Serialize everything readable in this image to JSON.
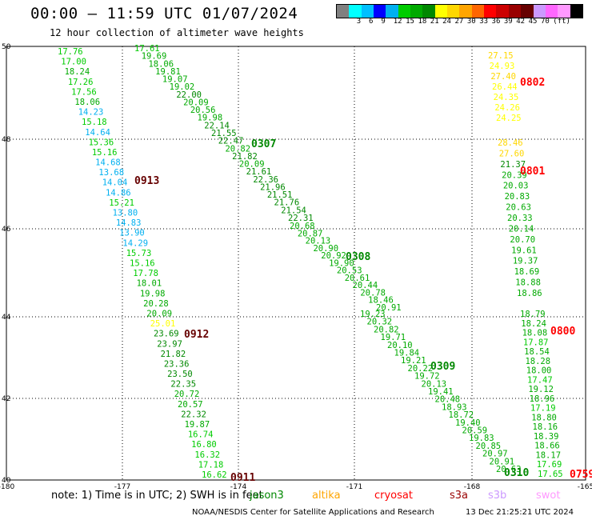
{
  "title": "00:00 – 11:59 UTC 01/07/2024",
  "subtitle": "12 hour collection of altimeter wave heights",
  "colorbar": {
    "colors": [
      "#808080",
      "#00ffff",
      "#00bfff",
      "#0000ff",
      "#00b0f0",
      "#00cc00",
      "#00aa00",
      "#008800",
      "#ffff00",
      "#ffd700",
      "#ffa500",
      "#ff6600",
      "#ff0000",
      "#cc0000",
      "#990000",
      "#660000",
      "#cc99ff",
      "#ff66ff",
      "#ff99ff",
      "#000000"
    ],
    "labels": [
      "3",
      "6",
      "9",
      "12",
      "15",
      "18",
      "21",
      "24",
      "27",
      "30",
      "33",
      "36",
      "39",
      "42",
      "45",
      "70",
      "(ft)"
    ]
  },
  "axes": {
    "x_ticks": [
      "-180",
      "-177",
      "-174",
      "-171",
      "-168",
      "-165"
    ],
    "y_ticks": [
      "50",
      "48",
      "46",
      "44",
      "42",
      "40"
    ]
  },
  "tracks": [
    {
      "id": "0913",
      "color": "#660000",
      "values": [
        "17.76",
        "17.00",
        "18.24",
        "17.26",
        "17.56",
        "18.06",
        "14.23",
        "15.18",
        "14.64",
        "15.36",
        "15.16",
        "14.68",
        "13.68",
        "14.04",
        "14.86",
        "15.21",
        "13.80",
        "14.83",
        "13.90",
        "14.29",
        "15.73",
        "15.16",
        "17.78",
        "18.01",
        "19.98",
        "20.28",
        "20.09",
        "25.01",
        "23.69",
        "23.97",
        "21.82",
        "23.36",
        "23.50",
        "22.35",
        "20.72",
        "20.57",
        "22.32",
        "19.87",
        "16.74",
        "16.80",
        "16.32",
        "17.18",
        "16.62"
      ]
    },
    {
      "id": "0307",
      "color": "#008800",
      "values": [
        "17.61",
        "19.69",
        "18.06",
        "19.81",
        "19.07",
        "19.02",
        "22.00",
        "20.09",
        "20.56",
        "19.98",
        "22.14",
        "21.55",
        "22.47",
        "20.82",
        "21.82",
        "20.09",
        "21.61",
        "22.36",
        "21.96",
        "21.51",
        "21.76",
        "21.54",
        "22.31"
      ]
    },
    {
      "id": "0308",
      "color": "#008800",
      "values": [
        "20.68",
        "20.87",
        "20.13",
        "20.90",
        "20.92",
        "19.90",
        "20.53",
        "20.61",
        "20.44",
        "20.78",
        "18.46",
        "20.91"
      ]
    },
    {
      "id": "0309",
      "color": "#008800",
      "values": [
        "19.23",
        "20.32",
        "20.82",
        "19.71",
        "20.10",
        "19.84",
        "19.21",
        "20.22",
        "19.72",
        "20.13",
        "19.41",
        "20.48",
        "18.93",
        "18.72",
        "19.40",
        "20.59",
        "19.83",
        "20.85",
        "20.97",
        "20.91",
        "20.63"
      ]
    },
    {
      "id": "0802",
      "color": "#ff0000",
      "values": [
        "27.15",
        "24.93",
        "27.40",
        "26.44",
        "24.35",
        "24.26",
        "24.25"
      ]
    },
    {
      "id": "0801",
      "color": "#ff0000",
      "values": [
        "28.46",
        "27.60",
        "21.37",
        "20.39",
        "20.03",
        "20.83",
        "20.63",
        "20.33",
        "20.14",
        "20.70",
        "19.61",
        "19.37",
        "18.69",
        "18.88",
        "18.86"
      ]
    },
    {
      "id": "0800",
      "color": "#ff0000",
      "values": [
        "18.79",
        "18.24",
        "18.08",
        "17.87",
        "18.54",
        "18.28",
        "18.00",
        "17.47",
        "19.12",
        "18.96",
        "17.19",
        "18.80",
        "18.16",
        "18.39",
        "18.66",
        "18.17",
        "17.69",
        "17.65"
      ]
    }
  ],
  "other_ids": [
    "0912",
    "0911",
    "0310",
    "0759"
  ],
  "note": {
    "text": "note:  1) Time is in UTC; 2) SWH is in feet",
    "legend": [
      {
        "name": "jason3",
        "color": "#008800"
      },
      {
        "name": "altika",
        "color": "#ffa500"
      },
      {
        "name": "cryosat",
        "color": "#ff0000"
      },
      {
        "name": "s3a",
        "color": "#990000"
      },
      {
        "name": "s3b",
        "color": "#cc99ff"
      },
      {
        "name": "swot",
        "color": "#ff99ff"
      }
    ]
  },
  "credit": "NOAA/NESDIS Center for Satellite Applications and Research",
  "timestamp": "13 Dec 21:25:21 UTC 2024"
}
